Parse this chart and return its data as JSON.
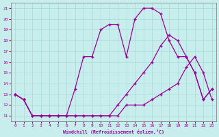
{
  "xlabel": "Windchill (Refroidissement éolien,°C)",
  "background_color": "#c8eded",
  "line_color": "#990099",
  "grid_color": "#a8d8d8",
  "xlim": [
    -0.5,
    23.5
  ],
  "ylim": [
    10.5,
    21.5
  ],
  "xticks": [
    0,
    1,
    2,
    3,
    4,
    5,
    6,
    7,
    8,
    9,
    10,
    11,
    12,
    13,
    14,
    15,
    16,
    17,
    18,
    19,
    20,
    21,
    22,
    23
  ],
  "yticks": [
    11,
    12,
    13,
    14,
    15,
    16,
    17,
    18,
    19,
    20,
    21
  ],
  "line1_x": [
    0,
    1,
    2,
    3,
    4,
    5,
    6,
    7,
    8,
    9,
    10,
    11,
    12,
    13,
    14,
    15,
    16,
    17,
    18,
    19,
    20,
    21,
    22,
    23
  ],
  "line1_y": [
    13,
    12.5,
    11,
    11,
    11,
    11,
    11,
    11,
    11,
    11,
    11,
    11,
    11,
    12,
    12,
    12,
    12.5,
    13,
    13.5,
    14,
    15.5,
    16.5,
    15,
    12.5
  ],
  "line2_x": [
    0,
    1,
    2,
    3,
    4,
    5,
    6,
    7,
    8,
    9,
    10,
    11,
    12,
    13,
    14,
    15,
    16,
    17,
    18,
    19,
    20,
    21,
    22,
    23
  ],
  "line2_y": [
    13,
    12.5,
    11,
    11,
    11,
    11,
    11,
    11,
    11,
    11,
    11,
    11,
    12,
    13,
    14,
    15,
    16,
    17.5,
    18.5,
    18,
    16.5,
    15,
    12.5,
    13.5
  ],
  "line3_x": [
    0,
    1,
    2,
    3,
    4,
    5,
    6,
    7,
    8,
    9,
    10,
    11,
    12,
    13,
    14,
    15,
    16,
    17,
    18,
    19,
    20,
    21,
    22,
    23
  ],
  "line3_y": [
    13,
    12.5,
    11,
    11,
    11,
    11,
    11,
    13.5,
    16.5,
    16.5,
    19,
    19.5,
    19.5,
    16.5,
    20,
    21,
    21,
    20.5,
    18,
    16.5,
    16.5,
    15,
    12.5,
    13.5
  ]
}
